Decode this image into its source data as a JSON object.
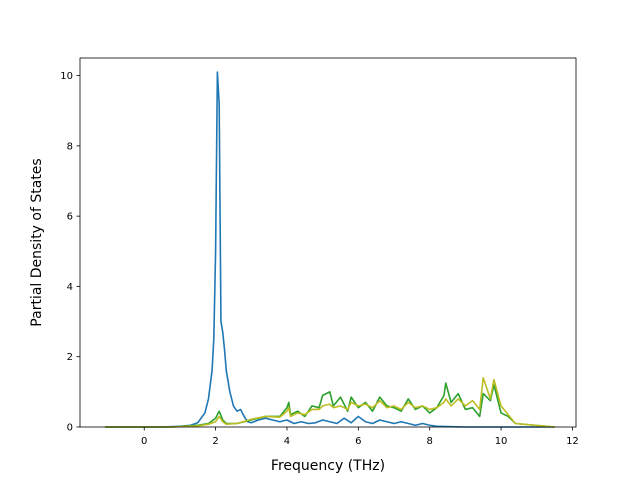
{
  "chart_data": {
    "type": "line",
    "title": "",
    "xlabel": "Frequency (THz)",
    "ylabel": "Partial Density of States",
    "xlim": [
      -1.8,
      12.1
    ],
    "ylim": [
      0,
      10.5
    ],
    "xticks": [
      0,
      2,
      4,
      6,
      8,
      10,
      12
    ],
    "yticks": [
      0,
      2,
      4,
      6,
      8,
      10
    ],
    "xtick_labels": [
      "0",
      "2",
      "4",
      "6",
      "8",
      "10",
      "12"
    ],
    "ytick_labels": [
      "0",
      "2",
      "4",
      "6",
      "8",
      "10"
    ],
    "grid": false,
    "legend": "none",
    "series": [
      {
        "color": "#1f77b4",
        "x": [
          -1.1,
          0.5,
          1.0,
          1.3,
          1.5,
          1.7,
          1.8,
          1.9,
          1.95,
          2.0,
          2.05,
          2.1,
          2.15,
          2.2,
          2.25,
          2.3,
          2.4,
          2.5,
          2.6,
          2.7,
          2.8,
          2.9,
          3.0,
          3.2,
          3.4,
          3.6,
          3.8,
          4.0,
          4.2,
          4.4,
          4.6,
          4.8,
          5.0,
          5.2,
          5.4,
          5.6,
          5.8,
          6.0,
          6.2,
          6.4,
          6.6,
          6.8,
          7.0,
          7.2,
          7.4,
          7.6,
          7.8,
          8.0,
          8.2,
          8.6,
          9.0,
          11.5
        ],
        "y": [
          0,
          0,
          0.02,
          0.05,
          0.12,
          0.4,
          0.8,
          1.6,
          2.5,
          5.0,
          10.1,
          9.2,
          3.0,
          2.7,
          2.2,
          1.6,
          1.0,
          0.6,
          0.45,
          0.5,
          0.3,
          0.15,
          0.12,
          0.2,
          0.25,
          0.2,
          0.15,
          0.2,
          0.1,
          0.15,
          0.1,
          0.12,
          0.2,
          0.15,
          0.1,
          0.25,
          0.12,
          0.3,
          0.15,
          0.1,
          0.2,
          0.15,
          0.1,
          0.15,
          0.1,
          0.05,
          0.1,
          0.05,
          0.02,
          0.01,
          0,
          0
        ]
      },
      {
        "color": "#2ca02c",
        "x": [
          -1.1,
          0.8,
          1.5,
          1.8,
          2.0,
          2.1,
          2.2,
          2.3,
          2.6,
          3.0,
          3.4,
          3.8,
          4.0,
          4.05,
          4.1,
          4.3,
          4.5,
          4.7,
          4.9,
          5.0,
          5.2,
          5.3,
          5.5,
          5.7,
          5.8,
          6.0,
          6.2,
          6.4,
          6.6,
          6.8,
          7.0,
          7.2,
          7.4,
          7.6,
          7.8,
          8.0,
          8.2,
          8.4,
          8.45,
          8.6,
          8.8,
          9.0,
          9.2,
          9.4,
          9.5,
          9.7,
          9.8,
          10.0,
          10.2,
          10.4,
          11.5
        ],
        "y": [
          0,
          0,
          0.05,
          0.1,
          0.25,
          0.45,
          0.2,
          0.1,
          0.1,
          0.2,
          0.3,
          0.3,
          0.55,
          0.7,
          0.35,
          0.45,
          0.3,
          0.6,
          0.55,
          0.9,
          1.0,
          0.6,
          0.85,
          0.45,
          0.85,
          0.55,
          0.7,
          0.45,
          0.85,
          0.6,
          0.55,
          0.45,
          0.8,
          0.5,
          0.6,
          0.4,
          0.55,
          0.9,
          1.25,
          0.7,
          0.95,
          0.5,
          0.55,
          0.3,
          0.95,
          0.75,
          1.2,
          0.4,
          0.3,
          0.1,
          0
        ]
      },
      {
        "color": "#bcbd22",
        "x": [
          -1.1,
          0.8,
          1.5,
          1.8,
          2.0,
          2.1,
          2.2,
          2.3,
          2.6,
          3.0,
          3.4,
          3.8,
          4.0,
          4.05,
          4.1,
          4.3,
          4.5,
          4.7,
          4.9,
          5.0,
          5.2,
          5.3,
          5.5,
          5.7,
          5.8,
          6.0,
          6.2,
          6.4,
          6.6,
          6.8,
          7.0,
          7.2,
          7.4,
          7.6,
          7.8,
          8.0,
          8.2,
          8.4,
          8.45,
          8.6,
          8.8,
          9.0,
          9.2,
          9.4,
          9.5,
          9.7,
          9.8,
          10.0,
          10.2,
          10.4,
          11.5
        ],
        "y": [
          0,
          0,
          0.03,
          0.08,
          0.15,
          0.3,
          0.15,
          0.08,
          0.1,
          0.22,
          0.3,
          0.28,
          0.45,
          0.55,
          0.3,
          0.4,
          0.35,
          0.5,
          0.5,
          0.6,
          0.65,
          0.55,
          0.6,
          0.5,
          0.7,
          0.6,
          0.65,
          0.55,
          0.75,
          0.55,
          0.6,
          0.5,
          0.7,
          0.55,
          0.6,
          0.5,
          0.55,
          0.7,
          0.8,
          0.6,
          0.8,
          0.6,
          0.75,
          0.5,
          1.4,
          0.8,
          1.35,
          0.6,
          0.35,
          0.1,
          0
        ]
      }
    ]
  }
}
